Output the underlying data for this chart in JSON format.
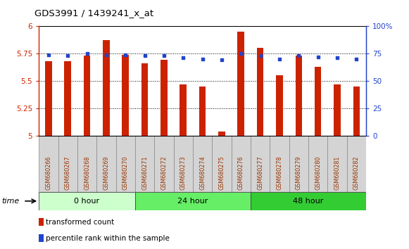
{
  "title": "GDS3991 / 1439241_x_at",
  "samples": [
    "GSM680266",
    "GSM680267",
    "GSM680268",
    "GSM680269",
    "GSM680270",
    "GSM680271",
    "GSM680272",
    "GSM680273",
    "GSM680274",
    "GSM680275",
    "GSM680276",
    "GSM680277",
    "GSM680278",
    "GSM680279",
    "GSM680280",
    "GSM680281",
    "GSM680282"
  ],
  "bar_values": [
    5.68,
    5.68,
    5.73,
    5.87,
    5.74,
    5.66,
    5.69,
    5.47,
    5.45,
    5.04,
    5.95,
    5.8,
    5.55,
    5.73,
    5.63,
    5.47,
    5.45
  ],
  "dot_values_pct": [
    74,
    73,
    75,
    74,
    74,
    73,
    73,
    71,
    70,
    69,
    75,
    73,
    70,
    73,
    72,
    71,
    70
  ],
  "bar_color": "#cc2200",
  "dot_color": "#2244cc",
  "ylim_left": [
    5.0,
    6.0
  ],
  "ylim_right": [
    0,
    100
  ],
  "yticks_left": [
    5.0,
    5.25,
    5.5,
    5.75,
    6.0
  ],
  "ytick_labels_left": [
    "5",
    "5.25",
    "5.5",
    "5.75",
    "6"
  ],
  "yticks_right": [
    0,
    25,
    50,
    75,
    100
  ],
  "ytick_labels_right": [
    "0",
    "25",
    "50",
    "75",
    "100%"
  ],
  "groups": [
    {
      "label": "0 hour",
      "start": 0,
      "end": 5,
      "color": "#ccffcc"
    },
    {
      "label": "24 hour",
      "start": 5,
      "end": 11,
      "color": "#66ee66"
    },
    {
      "label": "48 hour",
      "start": 11,
      "end": 17,
      "color": "#33cc33"
    }
  ],
  "time_label": "time",
  "legend_items": [
    {
      "label": "transformed count",
      "color": "#cc2200"
    },
    {
      "label": "percentile rank within the sample",
      "color": "#2244cc"
    }
  ],
  "sample_box_color": "#d4d4d4",
  "bar_width": 0.35
}
